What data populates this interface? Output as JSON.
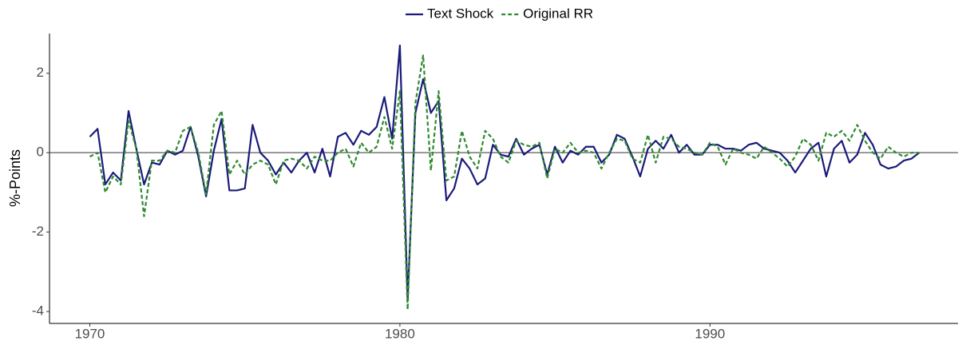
{
  "chart_data": {
    "type": "line",
    "y_label": "%-Points",
    "x": [
      1970,
      1970.25,
      1970.5,
      1970.75,
      1971,
      1971.25,
      1971.5,
      1971.75,
      1972,
      1972.25,
      1972.5,
      1972.75,
      1973,
      1973.25,
      1973.5,
      1973.75,
      1974,
      1974.25,
      1974.5,
      1974.75,
      1975,
      1975.25,
      1975.5,
      1975.75,
      1976,
      1976.25,
      1976.5,
      1976.75,
      1977,
      1977.25,
      1977.5,
      1977.75,
      1978,
      1978.25,
      1978.5,
      1978.75,
      1979,
      1979.25,
      1979.5,
      1979.75,
      1980,
      1980.25,
      1980.5,
      1980.75,
      1981,
      1981.25,
      1981.5,
      1981.75,
      1982,
      1982.25,
      1982.5,
      1982.75,
      1983,
      1983.25,
      1983.5,
      1983.75,
      1984,
      1984.25,
      1984.5,
      1984.75,
      1985,
      1985.25,
      1985.5,
      1985.75,
      1986,
      1986.25,
      1986.5,
      1986.75,
      1987,
      1987.25,
      1987.5,
      1987.75,
      1988,
      1988.25,
      1988.5,
      1988.75,
      1989,
      1989.25,
      1989.5,
      1989.75,
      1990,
      1990.25,
      1990.5,
      1990.75,
      1991,
      1991.25,
      1991.5,
      1991.75,
      1992,
      1992.25,
      1992.5,
      1992.75,
      1993,
      1993.25,
      1993.5,
      1993.75,
      1994,
      1994.25,
      1994.5,
      1994.75,
      1995,
      1995.25,
      1995.5,
      1995.75,
      1996,
      1996.25,
      1996.5,
      1996.75
    ],
    "series": [
      {
        "name": "Text Shock",
        "color": "#1a1a7a",
        "dash": false,
        "values": [
          0.4,
          0.6,
          -0.8,
          -0.5,
          -0.7,
          1.05,
          0.1,
          -0.8,
          -0.25,
          -0.3,
          0.05,
          -0.05,
          0.05,
          0.65,
          -0.1,
          -1.1,
          0.05,
          0.85,
          -0.95,
          -0.95,
          -0.9,
          0.7,
          0,
          -0.2,
          -0.55,
          -0.25,
          -0.5,
          -0.2,
          0,
          -0.5,
          0.1,
          -0.6,
          0.4,
          0.5,
          0.2,
          0.55,
          0.45,
          0.65,
          1.4,
          0.35,
          2.7,
          -3.7,
          1,
          1.85,
          1,
          1.3,
          -1.2,
          -0.9,
          -0.15,
          -0.4,
          -0.8,
          -0.65,
          0.2,
          -0.05,
          -0.1,
          0.35,
          -0.05,
          0.1,
          0.2,
          -0.55,
          0.15,
          -0.25,
          0.05,
          -0.05,
          0.15,
          0.15,
          -0.25,
          -0.05,
          0.45,
          0.35,
          -0.1,
          -0.6,
          0.1,
          0.3,
          0.1,
          0.45,
          0,
          0.2,
          -0.05,
          -0.05,
          0.2,
          0.2,
          0.1,
          0.1,
          0.05,
          0.2,
          0.25,
          0.1,
          0.05,
          0,
          -0.2,
          -0.5,
          -0.2,
          0.1,
          0.25,
          -0.6,
          0.1,
          0.3,
          -0.25,
          -0.05,
          0.5,
          0.2,
          -0.3,
          -0.4,
          -0.35,
          -0.2,
          -0.15,
          0
        ]
      },
      {
        "name": "Original RR",
        "color": "#2e8b2e",
        "dash": true,
        "values": [
          -0.1,
          0,
          -1,
          -0.6,
          -0.8,
          0.8,
          0.1,
          -1.6,
          -0.2,
          -0.2,
          0.05,
          0,
          0.55,
          0.65,
          0,
          -1.05,
          0.7,
          1.05,
          -0.55,
          -0.2,
          -0.55,
          -0.3,
          -0.2,
          -0.3,
          -0.8,
          -0.2,
          -0.15,
          -0.2,
          -0.4,
          -0.1,
          -0.2,
          -0.2,
          0,
          0.1,
          -0.35,
          0.25,
          0,
          0.15,
          0.9,
          0.1,
          1.55,
          -3.95,
          1.25,
          2.45,
          -0.45,
          1.55,
          -0.7,
          -0.6,
          0.55,
          -0.1,
          -0.4,
          0.55,
          0.35,
          -0.1,
          -0.25,
          0.3,
          0.2,
          0.15,
          0.25,
          -0.65,
          0.1,
          0,
          0.25,
          0,
          0.05,
          0,
          -0.4,
          0,
          0.35,
          0.3,
          -0.15,
          -0.25,
          0.45,
          -0.25,
          0.4,
          0.35,
          0.15,
          0.1,
          0,
          -0.05,
          0.25,
          0.15,
          -0.3,
          0.1,
          0,
          -0.05,
          -0.15,
          0.15,
          0,
          -0.15,
          -0.35,
          -0.1,
          0.35,
          0.2,
          -0.2,
          0.5,
          0.4,
          0.55,
          0.3,
          0.7,
          0.3,
          0,
          -0.15,
          0.15,
          0,
          -0.1,
          0,
          0
        ]
      }
    ],
    "xlim": [
      1968.7,
      1998
    ],
    "ylim": [
      -4.3,
      3
    ],
    "xticks": [
      1970,
      1980,
      1990
    ],
    "yticks": [
      -4,
      -2,
      0,
      2
    ],
    "grid": false,
    "legend": "top"
  }
}
